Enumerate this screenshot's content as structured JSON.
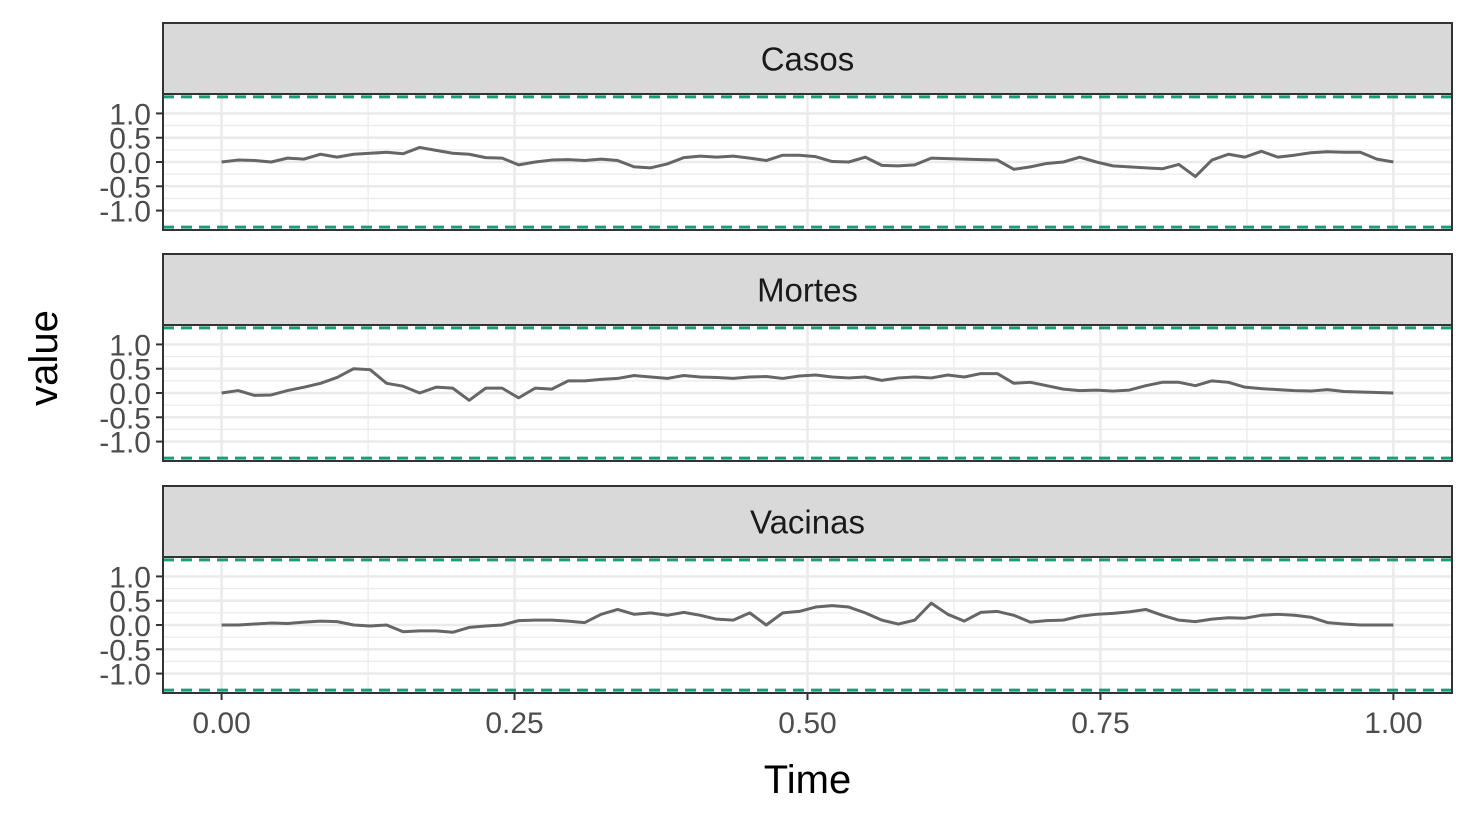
{
  "chart_data": {
    "type": "line",
    "xlabel": "Time",
    "ylabel": "value",
    "x_ticks": [
      "0.00",
      "0.25",
      "0.50",
      "0.75",
      "1.00"
    ],
    "y_ticks": [
      "-1.0",
      "-0.5",
      "0.0",
      "0.5",
      "1.0"
    ],
    "xlim": [
      0,
      1
    ],
    "ylim": [
      -1.4,
      1.4
    ],
    "grid": true,
    "colors": {
      "line": "#666666",
      "bound": "#1b9e77",
      "strip_fill": "#d9d9d9",
      "grid": "#ebebeb",
      "border": "#333333"
    },
    "bounds": [
      -1.34,
      1.34
    ],
    "x": [
      0,
      0.0141,
      0.0282,
      0.0423,
      0.0563,
      0.0704,
      0.0845,
      0.0986,
      0.1127,
      0.1268,
      0.1408,
      0.1549,
      0.169,
      0.1831,
      0.1972,
      0.2113,
      0.2254,
      0.2394,
      0.2535,
      0.2676,
      0.2817,
      0.2958,
      0.3099,
      0.3239,
      0.338,
      0.3521,
      0.3662,
      0.3803,
      0.3944,
      0.4085,
      0.4225,
      0.4366,
      0.4507,
      0.4648,
      0.4789,
      0.493,
      0.507,
      0.5211,
      0.5352,
      0.5493,
      0.5634,
      0.5775,
      0.5915,
      0.6056,
      0.6197,
      0.6338,
      0.6479,
      0.662,
      0.6761,
      0.6901,
      0.7042,
      0.7183,
      0.7324,
      0.7465,
      0.7606,
      0.7746,
      0.7887,
      0.8028,
      0.8169,
      0.831,
      0.8451,
      0.8592,
      0.8732,
      0.8873,
      0.9014,
      0.9155,
      0.9296,
      0.9437,
      0.9577,
      0.9718,
      0.9859,
      1.0
    ],
    "panels": [
      {
        "label": "Casos",
        "values": [
          0.0,
          0.04,
          0.03,
          0.0,
          0.08,
          0.06,
          0.16,
          0.1,
          0.16,
          0.18,
          0.2,
          0.17,
          0.3,
          0.24,
          0.18,
          0.16,
          0.09,
          0.08,
          -0.06,
          0.0,
          0.04,
          0.05,
          0.03,
          0.06,
          0.03,
          -0.1,
          -0.12,
          -0.04,
          0.09,
          0.12,
          0.1,
          0.12,
          0.08,
          0.03,
          0.14,
          0.14,
          0.11,
          0.01,
          0.0,
          0.1,
          -0.07,
          -0.08,
          -0.06,
          0.08,
          0.07,
          0.06,
          0.05,
          0.04,
          -0.15,
          -0.1,
          -0.03,
          0.0,
          0.1,
          0.0,
          -0.08,
          -0.1,
          -0.12,
          -0.14,
          -0.05,
          -0.3,
          0.04,
          0.16,
          0.1,
          0.22,
          0.1,
          0.14,
          0.19,
          0.21,
          0.2,
          0.2,
          0.06,
          0.0
        ]
      },
      {
        "label": "Mortes",
        "values": [
          0.0,
          0.05,
          -0.05,
          -0.04,
          0.05,
          0.12,
          0.2,
          0.32,
          0.5,
          0.48,
          0.2,
          0.14,
          0.0,
          0.12,
          0.1,
          -0.15,
          0.1,
          0.1,
          -0.1,
          0.1,
          0.08,
          0.25,
          0.25,
          0.28,
          0.3,
          0.36,
          0.33,
          0.3,
          0.36,
          0.33,
          0.32,
          0.3,
          0.33,
          0.34,
          0.3,
          0.35,
          0.37,
          0.33,
          0.31,
          0.33,
          0.26,
          0.31,
          0.33,
          0.31,
          0.37,
          0.33,
          0.4,
          0.4,
          0.2,
          0.22,
          0.15,
          0.08,
          0.05,
          0.06,
          0.04,
          0.06,
          0.15,
          0.22,
          0.22,
          0.15,
          0.25,
          0.22,
          0.12,
          0.09,
          0.07,
          0.05,
          0.04,
          0.07,
          0.03,
          0.02,
          0.01,
          0.0
        ]
      },
      {
        "label": "Vacinas",
        "values": [
          0.0,
          0.0,
          0.02,
          0.04,
          0.03,
          0.06,
          0.08,
          0.07,
          0.0,
          -0.02,
          0.0,
          -0.14,
          -0.12,
          -0.12,
          -0.15,
          -0.05,
          -0.02,
          0.0,
          0.09,
          0.1,
          0.1,
          0.08,
          0.05,
          0.22,
          0.32,
          0.22,
          0.25,
          0.2,
          0.26,
          0.2,
          0.12,
          0.1,
          0.25,
          0.0,
          0.25,
          0.28,
          0.37,
          0.4,
          0.37,
          0.25,
          0.1,
          0.02,
          0.1,
          0.45,
          0.22,
          0.08,
          0.26,
          0.28,
          0.2,
          0.06,
          0.09,
          0.1,
          0.18,
          0.22,
          0.24,
          0.27,
          0.32,
          0.2,
          0.1,
          0.07,
          0.12,
          0.15,
          0.14,
          0.2,
          0.22,
          0.2,
          0.16,
          0.05,
          0.02,
          0.0,
          0.0,
          0.0
        ]
      }
    ]
  }
}
